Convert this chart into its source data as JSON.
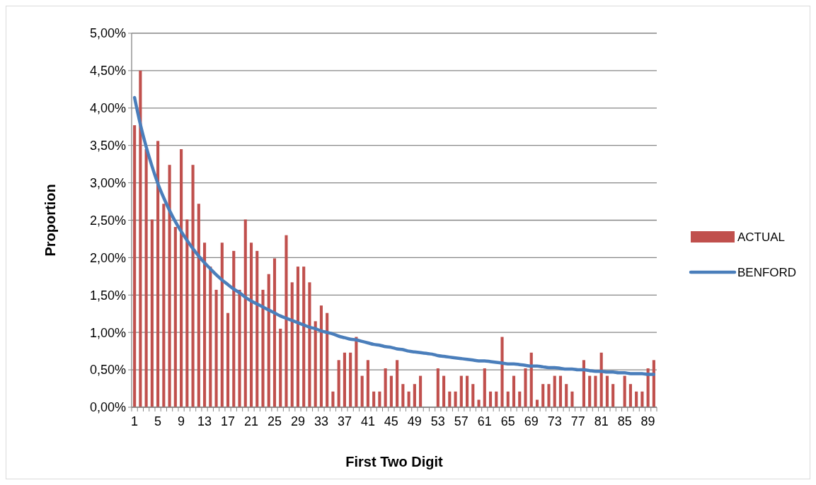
{
  "chart_data": {
    "type": "bar",
    "xlabel": "First Two Digit",
    "ylabel": "Proportion",
    "categories": [
      "1",
      null,
      null,
      null,
      "5",
      null,
      null,
      null,
      "9",
      null,
      null,
      null,
      "13",
      null,
      null,
      null,
      "17",
      null,
      null,
      null,
      "21",
      null,
      null,
      null,
      "25",
      null,
      null,
      null,
      "29",
      null,
      null,
      null,
      "33",
      null,
      null,
      null,
      "37",
      null,
      null,
      null,
      "41",
      null,
      null,
      null,
      "45",
      null,
      null,
      null,
      "49",
      null,
      null,
      null,
      "53",
      null,
      null,
      null,
      "57",
      null,
      null,
      null,
      "61",
      null,
      null,
      null,
      "65",
      null,
      null,
      null,
      "69",
      null,
      null,
      null,
      "73",
      null,
      null,
      null,
      "77",
      null,
      null,
      null,
      "81",
      null,
      null,
      null,
      "85",
      null,
      null,
      null,
      "89",
      null
    ],
    "series": [
      {
        "name": "ACTUAL",
        "color": "#c0504d",
        "values": [
          3.77,
          4.5,
          3.45,
          2.51,
          3.56,
          2.72,
          3.24,
          2.41,
          3.45,
          2.51,
          3.24,
          2.72,
          2.2,
          1.88,
          1.57,
          2.2,
          1.26,
          2.09,
          1.57,
          2.51,
          2.2,
          2.09,
          1.57,
          1.78,
          1.99,
          1.05,
          2.3,
          1.67,
          1.88,
          1.88,
          1.67,
          1.15,
          1.36,
          1.26,
          0.21,
          0.63,
          0.73,
          0.73,
          0.94,
          0.42,
          0.63,
          0.21,
          0.21,
          0.52,
          0.42,
          0.63,
          0.31,
          0.21,
          0.31,
          0.42,
          null,
          0,
          0.52,
          0.42,
          0.21,
          0.21,
          0.42,
          0.42,
          0.31,
          0.1,
          0.52,
          0.21,
          0.21,
          0.94,
          0.21,
          0.42,
          0.21,
          0.52,
          0.73,
          0.1,
          0.31,
          0.31,
          0.42,
          0.42,
          0.31,
          0.21,
          null,
          0.63,
          0.42,
          0.42,
          0.73,
          0.42,
          0.31,
          0,
          0.42,
          0.31,
          0.21,
          0.21,
          0.52,
          0.63
        ]
      },
      {
        "name": "BENFORD",
        "type": "line",
        "color": "#4a7ebb",
        "values": [
          4.14,
          3.78,
          3.48,
          3.22,
          2.99,
          2.8,
          2.63,
          2.48,
          2.35,
          2.23,
          2.12,
          2.02,
          1.93,
          1.85,
          1.77,
          1.7,
          1.64,
          1.58,
          1.53,
          1.47,
          1.42,
          1.38,
          1.34,
          1.3,
          1.26,
          1.22,
          1.19,
          1.16,
          1.13,
          1.1,
          1.07,
          1.05,
          1.02,
          1.0,
          0.98,
          0.95,
          0.93,
          0.91,
          0.9,
          0.88,
          0.86,
          0.84,
          0.83,
          0.81,
          0.8,
          0.78,
          0.77,
          0.75,
          0.74,
          0.73,
          0.72,
          0.71,
          0.69,
          0.68,
          0.67,
          0.66,
          0.65,
          0.64,
          0.63,
          0.62,
          0.62,
          0.61,
          0.6,
          0.59,
          0.58,
          0.58,
          0.57,
          0.56,
          0.55,
          0.55,
          0.54,
          0.53,
          0.53,
          0.52,
          0.51,
          0.51,
          0.5,
          0.5,
          0.49,
          0.48,
          0.48,
          0.47,
          0.47,
          0.46,
          0.46,
          0.45,
          0.45,
          0.45,
          0.44,
          0.44
        ]
      }
    ],
    "ylim": [
      0,
      5
    ],
    "yticks": [
      {
        "value": 0,
        "label": "0,00%"
      },
      {
        "value": 0.5,
        "label": "0,50%"
      },
      {
        "value": 1,
        "label": "1,00%"
      },
      {
        "value": 1.5,
        "label": "1,50%"
      },
      {
        "value": 2,
        "label": "2,00%"
      },
      {
        "value": 2.5,
        "label": "2,50%"
      },
      {
        "value": 3,
        "label": "3,00%"
      },
      {
        "value": 3.5,
        "label": "3,50%"
      },
      {
        "value": 4,
        "label": "4,00%"
      },
      {
        "value": 4.5,
        "label": "4,50%"
      },
      {
        "value": 5,
        "label": "5,00%"
      }
    ],
    "grid": "y",
    "legend": "right",
    "marker": "none",
    "line_style": "solid"
  }
}
